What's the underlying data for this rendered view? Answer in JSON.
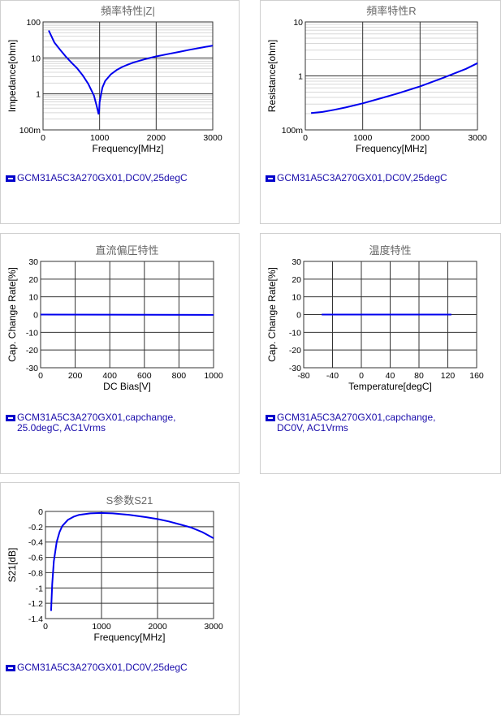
{
  "chart_data": [
    {
      "id": "imp",
      "type": "line",
      "title": "頻率特性|Z|",
      "xlabel": "Frequency[MHz]",
      "ylabel": "Impedance[ohm]",
      "xlim": [
        0,
        3000
      ],
      "ylim": [
        0.1,
        100
      ],
      "yscale": "log",
      "xticks": [
        "0",
        "1000",
        "2000",
        "3000"
      ],
      "yticks": [
        "100m",
        "1",
        "10",
        "100"
      ],
      "grid": true,
      "legend": "GCM31A5C3A270GX01,DC0V,25degC",
      "color": "#0000ee",
      "x": [
        100,
        200,
        300,
        400,
        500,
        600,
        700,
        800,
        900,
        950,
        970,
        980,
        990,
        1000,
        1050,
        1100,
        1200,
        1300,
        1400,
        1500,
        1600,
        1800,
        2000,
        2200,
        2400,
        2600,
        2800,
        3000
      ],
      "y": [
        58,
        27,
        17,
        11,
        7.5,
        5.2,
        3.3,
        1.9,
        0.9,
        0.45,
        0.33,
        0.28,
        0.3,
        0.6,
        1.5,
        2.3,
        3.5,
        4.6,
        5.6,
        6.5,
        7.5,
        9.2,
        11,
        12.7,
        14.6,
        16.9,
        19.4,
        22
      ]
    },
    {
      "id": "res",
      "type": "line",
      "title": "頻率特性R",
      "xlabel": "Frequency[MHz]",
      "ylabel": "Resistance[ohm]",
      "xlim": [
        0,
        3000
      ],
      "ylim": [
        0.1,
        10
      ],
      "yscale": "log",
      "xticks": [
        "0",
        "1000",
        "2000",
        "3000"
      ],
      "yticks": [
        "100m",
        "1",
        "10"
      ],
      "grid": true,
      "legend": "GCM31A5C3A270GX01,DC0V,25degC",
      "color": "#0000ee",
      "x": [
        100,
        300,
        500,
        700,
        1000,
        1300,
        1600,
        2000,
        2400,
        2800,
        3000
      ],
      "y": [
        0.205,
        0.215,
        0.235,
        0.26,
        0.31,
        0.38,
        0.47,
        0.64,
        0.92,
        1.35,
        1.72
      ]
    },
    {
      "id": "dcb",
      "type": "line",
      "title": "直流偏圧特性",
      "xlabel": "DC Bias[V]",
      "ylabel": "Cap. Change Rate[%]",
      "xlim": [
        0,
        1000
      ],
      "ylim": [
        -30,
        30
      ],
      "xticks": [
        "0",
        "200",
        "400",
        "600",
        "800",
        "1000"
      ],
      "yticks": [
        "-30",
        "-20",
        "-10",
        "0",
        "10",
        "20",
        "30"
      ],
      "grid": true,
      "legend": "GCM31A5C3A270GX01,capchange, 25.0degC, AC1Vrms",
      "color": "#0000ee",
      "x": [
        0,
        1000
      ],
      "y": [
        0,
        -0.2
      ]
    },
    {
      "id": "temp",
      "type": "line",
      "title": "温度特性",
      "xlabel": "Temperature[degC]",
      "ylabel": "Cap. Change Rate[%]",
      "xlim": [
        -80,
        160
      ],
      "ylim": [
        -30,
        30
      ],
      "xticks": [
        "-80",
        "-40",
        "0",
        "40",
        "80",
        "120",
        "160"
      ],
      "yticks": [
        "-30",
        "-20",
        "-10",
        "0",
        "10",
        "20",
        "30"
      ],
      "grid": true,
      "legend": "GCM31A5C3A270GX01,capchange, DC0V, AC1Vrms",
      "color": "#0000ee",
      "x": [
        -55,
        0,
        125
      ],
      "y": [
        0,
        0,
        0
      ]
    },
    {
      "id": "s21",
      "type": "line",
      "title": "S参数S21",
      "xlabel": "Frequency[MHz]",
      "ylabel": "S21[dB]",
      "xlim": [
        0,
        3000
      ],
      "ylim": [
        -1.4,
        0
      ],
      "xticks": [
        "0",
        "1000",
        "2000",
        "3000"
      ],
      "yticks": [
        "-1.4",
        "-1.2",
        "-1",
        "-0.8",
        "-0.6",
        "-0.4",
        "-0.2",
        "0"
      ],
      "grid": true,
      "legend": "GCM31A5C3A270GX01,DC0V,25degC",
      "color": "#0000ee",
      "x": [
        100,
        120,
        150,
        200,
        250,
        300,
        400,
        500,
        600,
        800,
        1000,
        1200,
        1500,
        1800,
        2000,
        2200,
        2400,
        2600,
        2800,
        3000
      ],
      "y": [
        -1.3,
        -0.95,
        -0.65,
        -0.4,
        -0.27,
        -0.19,
        -0.11,
        -0.07,
        -0.045,
        -0.025,
        -0.02,
        -0.025,
        -0.045,
        -0.075,
        -0.1,
        -0.13,
        -0.17,
        -0.21,
        -0.27,
        -0.35
      ]
    }
  ]
}
